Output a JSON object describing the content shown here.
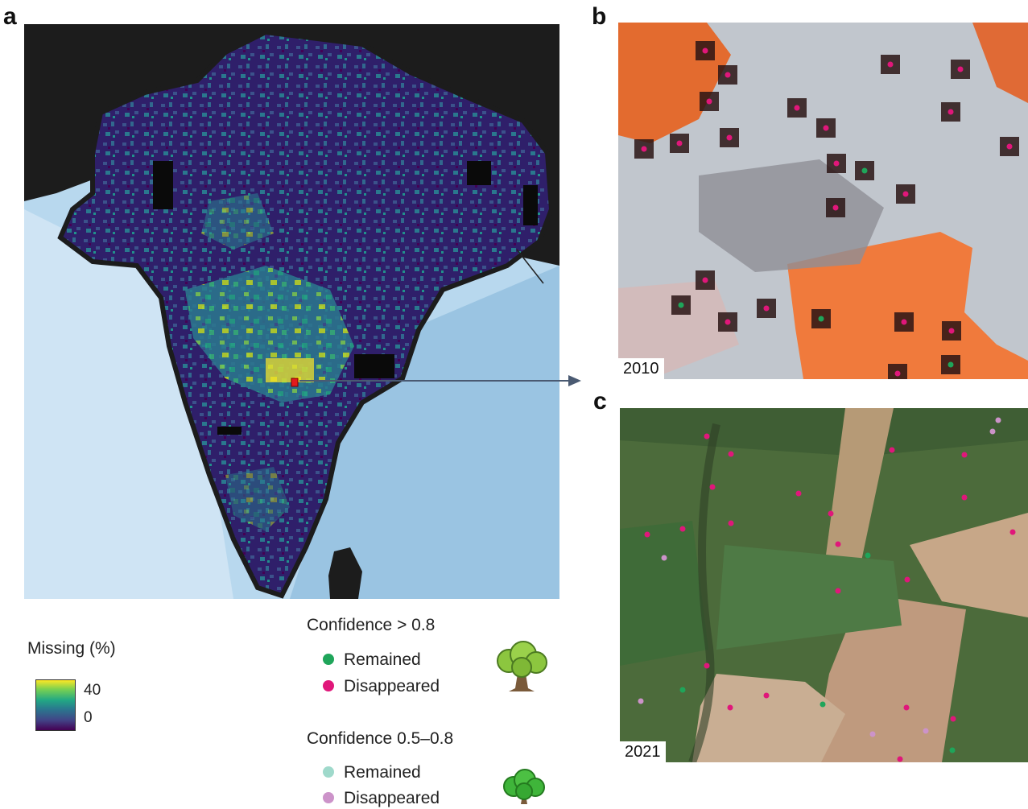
{
  "panels": {
    "a": "a",
    "b": "b",
    "c": "c"
  },
  "satellite": {
    "year_top": "2010",
    "year_bottom": "2021"
  },
  "colorbar": {
    "title": "Missing (%)",
    "tick_high": "40",
    "tick_low": "0",
    "colors": [
      "#fde725",
      "#7ad151",
      "#22a884",
      "#2a788e",
      "#414487",
      "#440154"
    ]
  },
  "legend": {
    "high_confidence": {
      "title": "Confidence > 0.8",
      "remained": "Remained",
      "disappeared": "Disappeared",
      "remained_color": "#1fa55a",
      "disappeared_color": "#e0177a",
      "icon": "tree-icon"
    },
    "mid_confidence": {
      "title": "Confidence 0.5–0.8",
      "remained": "Remained",
      "disappeared": "Disappeared",
      "remained_color": "#9fd9cb",
      "disappeared_color": "#cc93c9",
      "icon": "shrub-icon"
    }
  }
}
